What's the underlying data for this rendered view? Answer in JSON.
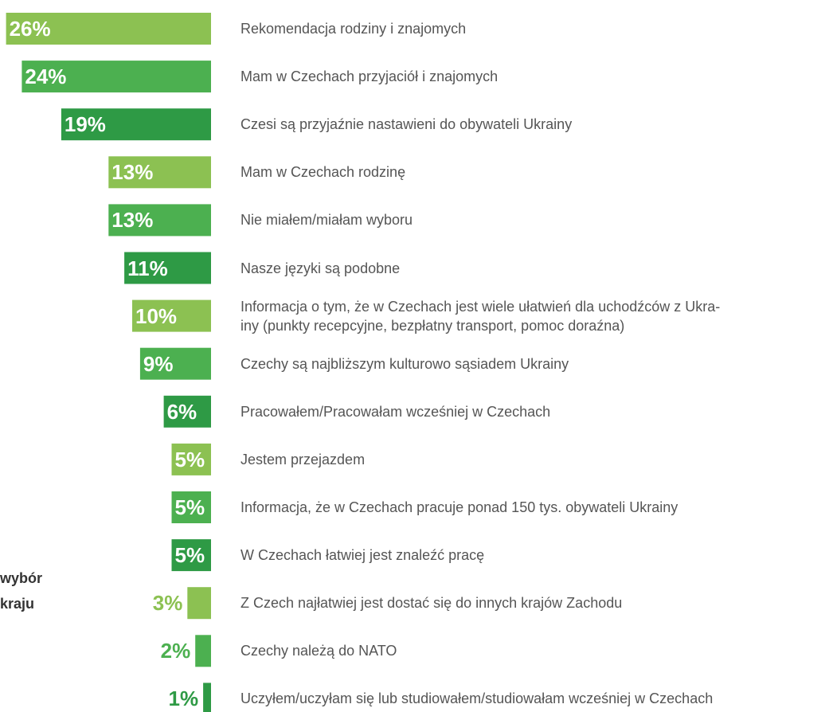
{
  "chart_data": {
    "type": "bar",
    "orientation": "horizontal",
    "categories": [
      "Rekomendacja rodziny i znajomych",
      "Mam w Czechach przyjaciół i znajomych",
      "Czesi są przyjaźnie nastawieni do obywateli Ukrainy",
      "Mam w Czechach rodzinę",
      "Nie miałem/miałam wyboru",
      "Nasze języki są podobne",
      "Informacja o tym, że w Czechach jest wiele ułatwień dla uchodźców z Ukra-\niny (punkty recepcyjne, bezpłatny transport, pomoc doraźna)",
      "Czechy są najbliższym kulturowo sąsiadem Ukrainy",
      "Pracowałem/Pracowałam wcześniej w Czechach",
      "Jestem przejazdem",
      "Informacja, że w Czechach pracuje ponad 150 tys. obywateli Ukrainy",
      "W Czechach łatwiej jest znaleźć pracę",
      "Z Czech najłatwiej jest dostać się do innych krajów Zachodu",
      "Czechy należą do NATO",
      "Uczyłem/uczyłam się lub studiowałem/studiowałam wcześniej w Czechach"
    ],
    "values": [
      26,
      24,
      19,
      13,
      13,
      11,
      10,
      9,
      6,
      5,
      5,
      5,
      3,
      2,
      1
    ],
    "value_labels": [
      "26%",
      "24%",
      "19%",
      "13%",
      "13%",
      "11%",
      "10%",
      "9%",
      "6%",
      "5%",
      "5%",
      "5%",
      "3%",
      "2%",
      "1%"
    ],
    "colors": [
      "#8cc152",
      "#4cb050",
      "#2e9a45",
      "#8cc152",
      "#4cb050",
      "#2e9a45",
      "#8cc152",
      "#4cb050",
      "#2e9a45",
      "#8cc152",
      "#4cb050",
      "#2e9a45",
      "#8cc152",
      "#4cb050",
      "#2e9a45"
    ],
    "side_label": [
      "wybór",
      "kraju"
    ]
  }
}
